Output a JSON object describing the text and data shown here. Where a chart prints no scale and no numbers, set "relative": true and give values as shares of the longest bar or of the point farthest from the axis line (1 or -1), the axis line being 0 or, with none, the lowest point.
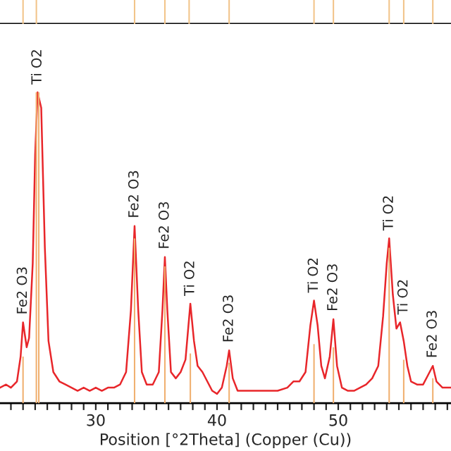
{
  "chart_data": [
    {
      "type": "bar",
      "relative": true,
      "tick_labels": false,
      "xlim": [
        22.1,
        59.3
      ],
      "color": "#f2c48a",
      "x": [
        24.0,
        25.1,
        33.2,
        35.7,
        37.7,
        41.0,
        48.0,
        49.6,
        54.2,
        55.4,
        57.8
      ],
      "values": [
        1,
        1,
        1,
        1,
        1,
        1,
        1,
        1,
        1,
        1,
        1
      ]
    },
    {
      "type": "line",
      "relative": true,
      "xlim": [
        22.1,
        59.3
      ],
      "xlabel": "Position [°2Theta] (Copper (Cu))",
      "xticks": [
        {
          "value": 23,
          "label": null
        },
        {
          "value": 24,
          "label": null
        },
        {
          "value": 25,
          "label": null
        },
        {
          "value": 26,
          "label": null
        },
        {
          "value": 27,
          "label": null
        },
        {
          "value": 28,
          "label": null
        },
        {
          "value": 29,
          "label": null
        },
        30,
        {
          "value": 31,
          "label": null
        },
        {
          "value": 32,
          "label": null
        },
        {
          "value": 33,
          "label": null
        },
        {
          "value": 34,
          "label": null
        },
        {
          "value": 35,
          "label": null
        },
        {
          "value": 36,
          "label": null
        },
        {
          "value": 37,
          "label": null
        },
        {
          "value": 38,
          "label": null
        },
        {
          "value": 39,
          "label": null
        },
        40,
        {
          "value": 41,
          "label": null
        },
        {
          "value": 42,
          "label": null
        },
        {
          "value": 43,
          "label": null
        },
        {
          "value": 44,
          "label": null
        },
        {
          "value": 45,
          "label": null
        },
        {
          "value": 46,
          "label": null
        },
        {
          "value": 47,
          "label": null
        },
        {
          "value": 48,
          "label": null
        },
        {
          "value": 49,
          "label": null
        },
        50,
        {
          "value": 51,
          "label": null
        },
        {
          "value": 52,
          "label": null
        },
        {
          "value": 53,
          "label": null
        },
        {
          "value": 54,
          "label": null
        },
        {
          "value": 55,
          "label": null
        },
        {
          "value": 56,
          "label": null
        },
        {
          "value": 57,
          "label": null
        },
        {
          "value": 58,
          "label": null
        },
        {
          "value": 59,
          "label": null
        }
      ],
      "tick_labels": "x",
      "grid": false,
      "legend": false,
      "series": [
        {
          "type": "bar",
          "color": "#f0b070",
          "x": [
            24.0,
            25.1,
            25.3,
            33.2,
            35.7,
            37.8,
            41.0,
            48.0,
            49.6,
            54.2,
            55.4,
            57.8
          ],
          "values": [
            0.15,
            1.0,
            1.0,
            0.53,
            0.44,
            0.16,
            0.13,
            0.19,
            0.18,
            0.5,
            0.14,
            0.08
          ]
        },
        {
          "type": "line",
          "color": "#e8262a",
          "x": [
            22.1,
            22.6,
            23.0,
            23.5,
            23.8,
            24.0,
            24.3,
            24.5,
            24.8,
            25.0,
            25.2,
            25.5,
            25.8,
            26.1,
            26.5,
            27.0,
            27.5,
            28.0,
            28.5,
            29.0,
            29.5,
            30.0,
            30.5,
            31.0,
            31.5,
            32.0,
            32.5,
            32.9,
            33.2,
            33.5,
            33.8,
            34.2,
            34.7,
            35.2,
            35.5,
            35.7,
            35.9,
            36.2,
            36.6,
            37.0,
            37.4,
            37.8,
            38.1,
            38.4,
            38.8,
            39.2,
            39.6,
            40.0,
            40.4,
            40.8,
            41.0,
            41.3,
            41.7,
            42.2,
            43.0,
            44.0,
            45.0,
            45.8,
            46.3,
            46.8,
            47.3,
            47.7,
            48.0,
            48.3,
            48.6,
            48.9,
            49.3,
            49.6,
            49.9,
            50.3,
            50.8,
            51.3,
            51.8,
            52.3,
            52.8,
            53.3,
            53.7,
            54.0,
            54.2,
            54.5,
            54.8,
            55.1,
            55.4,
            55.7,
            56.0,
            56.5,
            57.0,
            57.4,
            57.8,
            58.1,
            58.6,
            59.3
          ],
          "values": [
            0.05,
            0.06,
            0.05,
            0.07,
            0.15,
            0.26,
            0.18,
            0.21,
            0.45,
            0.8,
            1.0,
            0.95,
            0.5,
            0.2,
            0.1,
            0.07,
            0.06,
            0.05,
            0.04,
            0.05,
            0.04,
            0.05,
            0.04,
            0.05,
            0.05,
            0.06,
            0.1,
            0.3,
            0.57,
            0.3,
            0.1,
            0.06,
            0.06,
            0.1,
            0.3,
            0.47,
            0.3,
            0.1,
            0.08,
            0.1,
            0.14,
            0.32,
            0.2,
            0.12,
            0.1,
            0.07,
            0.04,
            0.03,
            0.05,
            0.12,
            0.17,
            0.08,
            0.04,
            0.04,
            0.04,
            0.04,
            0.04,
            0.05,
            0.07,
            0.07,
            0.1,
            0.25,
            0.33,
            0.25,
            0.12,
            0.08,
            0.15,
            0.27,
            0.12,
            0.05,
            0.04,
            0.04,
            0.05,
            0.06,
            0.08,
            0.12,
            0.28,
            0.45,
            0.53,
            0.35,
            0.24,
            0.26,
            0.2,
            0.12,
            0.07,
            0.06,
            0.06,
            0.09,
            0.12,
            0.07,
            0.05,
            0.05
          ]
        }
      ],
      "annotations": [
        {
          "text": "Fe2 O3",
          "x": 24.0,
          "y": 0.26
        },
        {
          "text": "Ti O2",
          "x": 25.2,
          "y": 1.0
        },
        {
          "text": "Fe2 O3",
          "x": 33.2,
          "y": 0.57
        },
        {
          "text": "Fe2 O3",
          "x": 35.7,
          "y": 0.47
        },
        {
          "text": "Ti O2",
          "x": 37.8,
          "y": 0.32
        },
        {
          "text": "Fe2 O3",
          "x": 41.0,
          "y": 0.17
        },
        {
          "text": "Ti O2",
          "x": 48.0,
          "y": 0.33
        },
        {
          "text": "Fe2 O3",
          "x": 49.6,
          "y": 0.27
        },
        {
          "text": "Ti O2",
          "x": 54.2,
          "y": 0.53
        },
        {
          "text": "Ti O2",
          "x": 55.4,
          "y": 0.26
        },
        {
          "text": "Fe2 O3",
          "x": 57.8,
          "y": 0.12
        }
      ]
    }
  ]
}
